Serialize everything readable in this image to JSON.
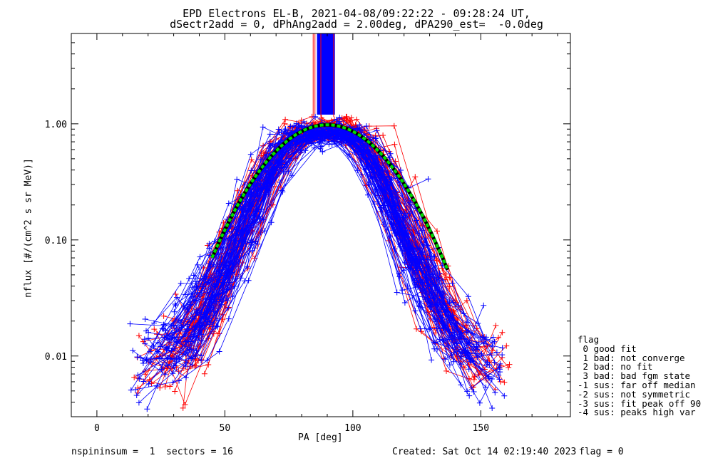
{
  "title_line1": "EPD Electrons EL-B, 2021-04-08/09:22:22 - 09:28:24 UT,",
  "title_line2": "dSectr2add = 0, dPhAng2add = 2.00deg, dPA290_est=  -0.0deg",
  "footer": {
    "left": "nspininsum =  1  sectors = 16",
    "created": "Created: Sat Oct 14 02:19:40 2023",
    "flag": "flag = 0"
  },
  "legend": {
    "title": "flag",
    "items": [
      " 0 good fit",
      " 1 bad: not converge",
      " 2 bad: no fit",
      " 3 bad: bad fgm state",
      "-1 sus: far off median",
      "-2 sus: not symmetric",
      "-3 sus: fit peak off 90",
      "-4 sus: peaks high var"
    ]
  },
  "colors": {
    "series_red": "#ff0000",
    "series_blue": "#0000ff",
    "fit": "#00e000",
    "axis": "#000000"
  },
  "chart_data": {
    "type": "line",
    "xlabel": "PA [deg]",
    "ylabel": "nflux [#/(cm^2 s sr MeV)]",
    "xlim": [
      -10,
      185
    ],
    "ylim": [
      0.003,
      6.0
    ],
    "yscale": "log",
    "x_ticks": [
      0,
      50,
      100,
      150
    ],
    "y_tick_labels": [
      {
        "value": 0.01,
        "label": "0.01"
      },
      {
        "value": 0.1,
        "label": "0.10"
      },
      {
        "value": 1.0,
        "label": "1.00"
      }
    ],
    "pa_bins": [
      16,
      18,
      20,
      22,
      24,
      26,
      28,
      30,
      33,
      35,
      38,
      42,
      47,
      52,
      57,
      62,
      67,
      72,
      77,
      80,
      100,
      103,
      108,
      113,
      118,
      123,
      128,
      133,
      138,
      143,
      148,
      152,
      155,
      158,
      160,
      163,
      165
    ],
    "series": [
      {
        "color": "red",
        "count": 60,
        "x": [
          16,
          20,
          30,
          42,
          52,
          62,
          72,
          80,
          100,
          108,
          118,
          128,
          138,
          148,
          158,
          165
        ],
        "typical_y": [
          0.008,
          0.009,
          0.01,
          0.02,
          0.08,
          0.25,
          0.65,
          0.9,
          0.85,
          0.55,
          0.18,
          0.05,
          0.015,
          0.009,
          0.008,
          0.009
        ]
      },
      {
        "color": "blue",
        "count": 80,
        "x": [
          16,
          20,
          30,
          42,
          52,
          62,
          72,
          80,
          100,
          108,
          118,
          128,
          138,
          148,
          158,
          165
        ],
        "typical_y": [
          0.009,
          0.01,
          0.012,
          0.025,
          0.07,
          0.22,
          0.6,
          0.85,
          0.82,
          0.5,
          0.15,
          0.045,
          0.018,
          0.01,
          0.009,
          0.008
        ]
      }
    ],
    "fit": {
      "name": "fit",
      "color": "green",
      "style": "dashed",
      "x_range": [
        45,
        137
      ],
      "peak_x": 90,
      "peak_y": 0.98,
      "sigma_deg": 19.6
    }
  }
}
